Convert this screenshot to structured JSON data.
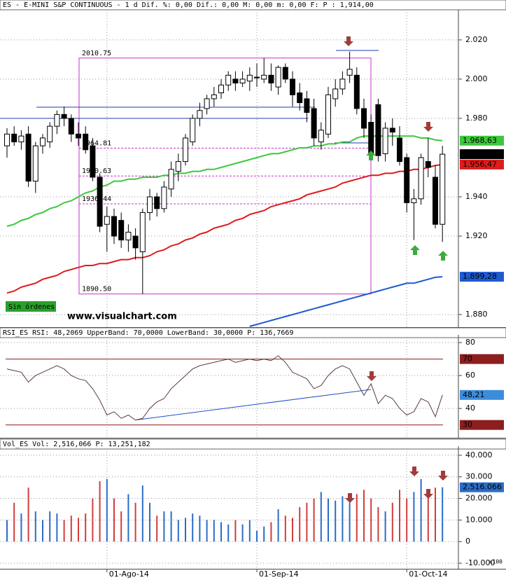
{
  "chart_data": [
    {
      "type": "candlestick",
      "title": "ES - E-MINI S&P CONTINUOUS - 1 d Dif. %: 0,00 Dif.: 0,00 M: 0,00 m: 0,00 F:",
      "title_value": "P : 1,914,00",
      "open": [
        1966,
        1972,
        1968,
        1972,
        1948,
        1966,
        1968,
        1976,
        1982,
        1980,
        1972,
        1972,
        1966,
        1950,
        1926,
        1930,
        1928,
        1918,
        1920,
        1912,
        1932,
        1940,
        1934,
        1944,
        1953,
        1958,
        1968,
        1980,
        1985,
        1990,
        1993,
        1997,
        2000,
        1998,
        1999,
        2001,
        2000,
        2002,
        1996,
        2006,
        2000,
        1993,
        1990,
        1985,
        1968,
        1972,
        1990,
        1995,
        2002,
        2002,
        1985,
        1978,
        1987,
        1962,
        1975,
        1970,
        1960,
        1937,
        1939,
        1958,
        1950,
        1926
      ],
      "high": [
        1975,
        1976,
        1974,
        1976,
        1968,
        1972,
        1978,
        1984,
        1986,
        1982,
        1978,
        1976,
        1970,
        1952,
        1935,
        1934,
        1932,
        1926,
        1924,
        1934,
        1944,
        1942,
        1948,
        1958,
        1962,
        1972,
        1982,
        1988,
        1992,
        1996,
        2000,
        2004,
        2004,
        2004,
        2006,
        2008,
        2010.75,
        2008,
        2007,
        2008,
        2004,
        1998,
        1994,
        1990,
        1978,
        1996,
        2000,
        2004,
        2014,
        2006,
        1990,
        1982,
        1990,
        1978,
        1980,
        1976,
        1962,
        1944,
        1962,
        1970,
        1956,
        1966
      ],
      "low": [
        1960,
        1966,
        1964,
        1945,
        1942,
        1962,
        1965,
        1972,
        1976,
        1968,
        1966,
        1962,
        1948,
        1922,
        1912,
        1916,
        1914,
        1912,
        1908,
        1890.5,
        1928,
        1930,
        1932,
        1940,
        1948,
        1956,
        1966,
        1976,
        1982,
        1986,
        1990,
        1994,
        1994,
        1996,
        1994,
        1996,
        1998,
        1994,
        1992,
        1998,
        1986,
        1984,
        1978,
        1966,
        1964,
        1970,
        1986,
        1992,
        1998,
        1982,
        1970,
        1960,
        1958,
        1958,
        1966,
        1956,
        1932,
        1918,
        1936,
        1950,
        1924,
        1917
      ],
      "close": [
        1972,
        1968,
        1971,
        1948,
        1966,
        1970,
        1976,
        1982,
        1980,
        1972,
        1970,
        1964,
        1950,
        1925,
        1930,
        1920,
        1918,
        1922,
        1914,
        1932,
        1940,
        1934,
        1945,
        1954,
        1958,
        1970,
        1980,
        1984,
        1990,
        1992,
        1997,
        2002,
        1998,
        2000,
        2002,
        2001,
        2002,
        1998,
        2006,
        2000,
        1992,
        1988,
        1983,
        1970,
        1974,
        1992,
        1995,
        2000,
        2005,
        1985,
        1975,
        1962,
        1961,
        1975,
        1973,
        1958,
        1937,
        1939,
        1960,
        1955,
        1926,
        1961.75
      ],
      "last_label": "1.961,75",
      "up_color": "#ffffff",
      "down_color": "#000000",
      "series": [
        {
          "color": "#3cc83c",
          "last_label": "1.968,63",
          "values": [
            1925,
            1926,
            1928,
            1929,
            1931,
            1932,
            1934,
            1935,
            1937,
            1938,
            1940,
            1942,
            1943,
            1945,
            1946,
            1948,
            1948,
            1949,
            1949,
            1950,
            1950,
            1950,
            1951,
            1951,
            1952,
            1952,
            1953,
            1953,
            1954,
            1954,
            1955,
            1956,
            1957,
            1958,
            1959,
            1960,
            1961,
            1962,
            1962,
            1963,
            1964,
            1965,
            1965,
            1966,
            1966,
            1967,
            1967,
            1968,
            1968,
            1970,
            1971,
            1971,
            1971,
            1971,
            1971,
            1971,
            1971,
            1971,
            1970,
            1970,
            1969,
            1968.63
          ]
        },
        {
          "color": "#dd1c1c",
          "last_label": "1.956,47",
          "values": [
            1891,
            1892,
            1894,
            1895,
            1896,
            1898,
            1899,
            1900,
            1902,
            1903,
            1904,
            1905,
            1905,
            1906,
            1906,
            1907,
            1908,
            1908,
            1909,
            1909,
            1910,
            1912,
            1913,
            1915,
            1916,
            1918,
            1919,
            1921,
            1922,
            1924,
            1925,
            1926,
            1928,
            1929,
            1931,
            1932,
            1933,
            1935,
            1936,
            1937,
            1938,
            1939,
            1941,
            1942,
            1943,
            1944,
            1945,
            1947,
            1948,
            1949,
            1950,
            1951,
            1951,
            1952,
            1952,
            1953,
            1953,
            1954,
            1954,
            1955,
            1956,
            1956.47
          ]
        },
        {
          "color": "#1e5ad2",
          "last_label": "1.899,28",
          "values": [
            null,
            null,
            null,
            null,
            null,
            null,
            null,
            null,
            null,
            null,
            null,
            null,
            null,
            null,
            null,
            null,
            null,
            null,
            null,
            null,
            null,
            null,
            null,
            null,
            null,
            null,
            null,
            null,
            null,
            null,
            null,
            null,
            null,
            null,
            1874,
            1875,
            1876,
            1877,
            1878,
            1879,
            1880,
            1881,
            1882,
            1883,
            1884,
            1885,
            1886,
            1887,
            1888,
            1889,
            1890,
            1891,
            1892,
            1893,
            1894,
            1895,
            1896,
            1896,
            1897,
            1898,
            1899,
            1899.28
          ]
        }
      ],
      "fib": [
        {
          "value": 2010.75,
          "label": "2010.75"
        },
        {
          "value": 1964.81,
          "label": "1964.81"
        },
        {
          "value": 1950.63,
          "label": "1950.63"
        },
        {
          "value": 1936.44,
          "label": "1936.44"
        },
        {
          "value": 1890.5,
          "label": "1890.50"
        }
      ],
      "fib_color": "#c832c8",
      "annotations": [
        "Sin órdenes",
        "www.visualchart.com"
      ],
      "ylim": [
        1873.6,
        2033.9
      ],
      "yticks": [
        {
          "value": 2020,
          "label": "2.020"
        },
        {
          "value": 2000,
          "label": "2.000"
        },
        {
          "value": 1980,
          "label": "1.980"
        },
        {
          "value": 1940,
          "label": "1.940"
        },
        {
          "value": 1920,
          "label": "1.920"
        },
        {
          "value": 1880,
          "label": "1.880"
        }
      ],
      "grid": true
    },
    {
      "type": "line",
      "title": "RSI_ES RSI: 48,2069 UpperBand: 70,0000 LowerBand: 30,0000",
      "title_value": "P: 136,7669",
      "values": [
        64,
        63,
        62,
        56,
        60,
        62,
        64,
        66,
        64,
        60,
        58,
        57,
        52,
        45,
        36,
        38,
        34,
        36,
        33,
        34,
        40,
        44,
        46,
        52,
        56,
        60,
        64,
        66,
        67,
        68,
        69,
        70,
        68,
        69,
        70,
        69,
        70,
        69,
        72,
        68,
        62,
        60,
        58,
        52,
        54,
        60,
        64,
        66,
        64,
        56,
        48,
        55,
        43,
        48,
        46,
        40,
        36,
        38,
        46,
        44,
        35,
        48.21
      ],
      "color": "#5a3c3c",
      "last_label": "48,21",
      "last_color": "#3c8cdc",
      "bands": [
        70,
        30
      ],
      "band_color": "#8c1e1e",
      "ylim": [
        22.2,
        83
      ],
      "yticks": [
        80,
        60,
        40
      ],
      "grid": true
    },
    {
      "type": "bar",
      "title": "Vol_ES Vol: 2,516,066",
      "title_value": "P: 13,251,182",
      "values": [
        10000,
        18000,
        13000,
        25000,
        14000,
        10000,
        14000,
        13000,
        10000,
        12000,
        11000,
        13000,
        20000,
        28000,
        29000,
        20000,
        14000,
        22000,
        18000,
        26000,
        18000,
        12000,
        14000,
        14000,
        10000,
        11000,
        13000,
        12000,
        10000,
        10000,
        9000,
        8000,
        10000,
        8000,
        10000,
        5000,
        7000,
        9000,
        15000,
        12000,
        11000,
        16000,
        18000,
        20000,
        23000,
        20000,
        19000,
        21000,
        18000,
        22000,
        24000,
        20000,
        16000,
        14000,
        18000,
        24000,
        20000,
        23000,
        29000,
        22000,
        25000,
        25160.66
      ],
      "last_label": "2.516.066",
      "up_color": "#2a6cc8",
      "down_color": "#d23c3c",
      "unit_label": "x100",
      "ylim": [
        -12600,
        42900
      ],
      "yticks": [
        {
          "value": 40000,
          "label": "40.000"
        },
        {
          "value": 30000,
          "label": "30.000"
        },
        {
          "value": 20000,
          "label": "20.000"
        },
        {
          "value": 10000,
          "label": "10.000"
        },
        0,
        {
          "value": -10000,
          "label": "-10.000"
        }
      ],
      "xticks": [
        {
          "value": 14,
          "label": "01-Ago-14"
        },
        {
          "value": 35,
          "label": "01-Sep-14"
        },
        {
          "value": 56,
          "label": "01-Oct-14"
        }
      ],
      "grid": true
    }
  ]
}
